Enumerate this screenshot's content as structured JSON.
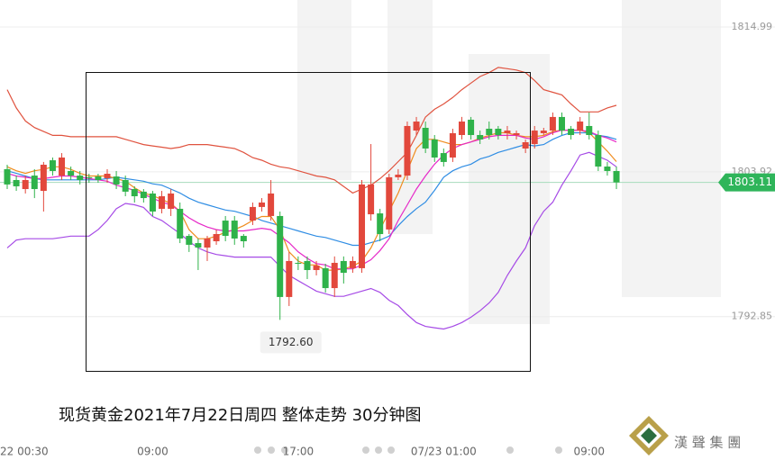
{
  "chart_data": {
    "type": "candlestick",
    "title": "现货黄金2021年7月22日周四 整体走势 30分钟图",
    "categories": [
      "22 00:30",
      null,
      null,
      null,
      null,
      null,
      null,
      null,
      null,
      null,
      null,
      null,
      null,
      null,
      null,
      null,
      "09:00",
      null,
      null,
      null,
      null,
      null,
      null,
      null,
      null,
      null,
      null,
      null,
      null,
      null,
      null,
      null,
      "17:00",
      null,
      null,
      null,
      null,
      null,
      null,
      null,
      null,
      null,
      null,
      null,
      null,
      null,
      null,
      null,
      "07/23 01:00",
      null,
      null,
      null,
      null,
      null,
      null,
      null,
      null,
      null,
      null,
      null,
      null,
      null,
      null,
      null,
      "09:00",
      null,
      null,
      null
    ],
    "open": [
      1804.12,
      1803.29,
      1802.6,
      1803.63,
      1802.46,
      1804.8,
      1803.63,
      1803.98,
      1803.63,
      1803.5,
      1803.56,
      1803.43,
      1803.56,
      1803.29,
      1802.6,
      1802.4,
      1802.26,
      1801.09,
      1801.09,
      1801.09,
      1799.02,
      1798.47,
      1798.13,
      1798.61,
      1800.19,
      1800.19,
      1799.02,
      1800.19,
      1801.23,
      1800.54,
      1800.54,
      1794.35,
      1796.96,
      1797.1,
      1796.41,
      1796.55,
      1795.03,
      1797.1,
      1796.55,
      1796.55,
      1800.67,
      1800.74,
      1799.51,
      1803.5,
      1803.63,
      1807.07,
      1807.28,
      1806.39,
      1805.35,
      1805.01,
      1806.73,
      1807.9,
      1806.73,
      1807.21,
      1807.21,
      1806.87,
      1806.73,
      1805.7,
      1806.04,
      1806.87,
      1807.07,
      1808.11,
      1807.21,
      1807.07,
      1807.42,
      1806.73,
      1804.32,
      1803.98
    ],
    "high": [
      1804.46,
      1803.63,
      1803.63,
      1804.12,
      1804.67,
      1805.01,
      1805.35,
      1804.32,
      1803.98,
      1803.77,
      1803.77,
      1804.12,
      1803.98,
      1803.63,
      1802.81,
      1802.6,
      1802.46,
      1802.46,
      1802.6,
      1801.57,
      1799.16,
      1798.82,
      1799.02,
      1799.51,
      1800.54,
      1800.54,
      1799.16,
      1801.57,
      1801.91,
      1803.29,
      1800.88,
      1797.79,
      1797.45,
      1797.45,
      1797.1,
      1796.89,
      1797.45,
      1797.45,
      1797.45,
      1803.29,
      1806.04,
      1801.09,
      1803.77,
      1804.12,
      1807.76,
      1808.11,
      1807.76,
      1806.73,
      1805.7,
      1807.21,
      1808.11,
      1808.11,
      1807.07,
      1807.76,
      1807.42,
      1807.42,
      1807.07,
      1806.39,
      1807.42,
      1807.28,
      1808.45,
      1808.45,
      1807.42,
      1808.11,
      1808.45,
      1807.07,
      1804.67,
      1804.32
    ],
    "low": [
      1802.6,
      1802.46,
      1802.26,
      1801.91,
      1800.88,
      1803.63,
      1803.29,
      1803.29,
      1802.95,
      1803.08,
      1803.08,
      1803.08,
      1802.6,
      1802.05,
      1801.57,
      1801.57,
      1800.54,
      1800.74,
      1800.54,
      1798.47,
      1797.79,
      1796.41,
      1797.1,
      1798.34,
      1798.61,
      1798.34,
      1798.13,
      1799.85,
      1800.88,
      1800.19,
      1792.6,
      1793.66,
      1796.41,
      1795.72,
      1796.0,
      1794.69,
      1794.35,
      1795.38,
      1796.2,
      1796.2,
      1800.19,
      1798.61,
      1799.16,
      1803.29,
      1803.29,
      1806.73,
      1805.35,
      1804.67,
      1804.32,
      1804.67,
      1806.39,
      1806.39,
      1806.04,
      1806.39,
      1806.39,
      1806.39,
      1806.39,
      1805.35,
      1805.7,
      1806.73,
      1806.73,
      1806.73,
      1806.39,
      1806.73,
      1806.39,
      1803.98,
      1803.63,
      1802.6
    ],
    "close": [
      1802.95,
      1802.81,
      1803.29,
      1802.6,
      1804.46,
      1803.98,
      1805.01,
      1803.63,
      1803.29,
      1803.43,
      1803.29,
      1803.77,
      1802.95,
      1802.4,
      1802.05,
      1801.91,
      1800.88,
      1802.05,
      1802.26,
      1798.82,
      1798.34,
      1798.13,
      1798.82,
      1799.16,
      1799.02,
      1798.82,
      1798.61,
      1801.23,
      1801.57,
      1802.26,
      1794.35,
      1797.1,
      1796.89,
      1796.41,
      1796.75,
      1795.03,
      1796.96,
      1796.2,
      1797.1,
      1802.95,
      1802.95,
      1799.16,
      1803.5,
      1803.7,
      1807.42,
      1807.76,
      1805.7,
      1805.01,
      1804.67,
      1806.87,
      1807.76,
      1806.73,
      1806.39,
      1806.73,
      1806.73,
      1807.07,
      1806.87,
      1806.18,
      1807.07,
      1807.07,
      1808.11,
      1807.07,
      1806.73,
      1807.76,
      1806.73,
      1804.32,
      1803.98,
      1803.11
    ],
    "up_color": "#e2483c",
    "down_color": "#2fb24a",
    "lines": [
      {
        "color": "#e0533f",
        "values": [
          1810.2,
          1808.8,
          1807.8,
          1807.3,
          1807.0,
          1806.7,
          1806.7,
          1806.6,
          1806.6,
          1806.6,
          1806.6,
          1806.6,
          1806.6,
          1806.4,
          1806.2,
          1806.0,
          1805.9,
          1805.8,
          1805.7,
          1805.8,
          1806.0,
          1806.0,
          1806.0,
          1805.9,
          1805.8,
          1805.7,
          1805.4,
          1805.0,
          1804.8,
          1804.5,
          1804.3,
          1804.2,
          1804.0,
          1803.8,
          1803.6,
          1803.5,
          1803.3,
          1802.8,
          1802.3,
          1802.6,
          1802.9,
          1803.4,
          1804.0,
          1804.7,
          1805.4,
          1806.7,
          1808.1,
          1808.7,
          1809.1,
          1809.6,
          1810.2,
          1810.7,
          1811.2,
          1811.5,
          1811.9,
          1811.8,
          1811.7,
          1811.5,
          1810.9,
          1810.2,
          1810.0,
          1809.8,
          1809.1,
          1808.5,
          1808.5,
          1808.5,
          1808.8,
          1809.0
        ]
      },
      {
        "color": "#2f8de4",
        "values": [
          1804.0,
          1803.8,
          1803.6,
          1803.4,
          1803.3,
          1803.3,
          1803.3,
          1803.3,
          1803.3,
          1803.3,
          1803.3,
          1803.4,
          1803.5,
          1803.4,
          1803.3,
          1803.2,
          1803.0,
          1802.9,
          1802.6,
          1802.3,
          1801.9,
          1801.6,
          1801.4,
          1801.2,
          1801.0,
          1800.9,
          1800.7,
          1800.5,
          1800.2,
          1800.0,
          1799.8,
          1799.6,
          1799.4,
          1799.2,
          1799.0,
          1798.9,
          1798.7,
          1798.5,
          1798.3,
          1798.3,
          1798.5,
          1798.7,
          1799.0,
          1799.8,
          1800.5,
          1801.1,
          1801.6,
          1802.5,
          1803.5,
          1804.0,
          1804.3,
          1804.5,
          1804.9,
          1805.1,
          1805.4,
          1805.6,
          1805.8,
          1806.0,
          1805.9,
          1806.0,
          1806.4,
          1806.7,
          1806.9,
          1806.9,
          1806.9,
          1806.7,
          1806.6,
          1806.4
        ]
      },
      {
        "color": "#a64be6",
        "values": [
          1798.1,
          1798.7,
          1798.8,
          1798.8,
          1798.8,
          1798.8,
          1798.9,
          1799.0,
          1799.0,
          1799.0,
          1799.5,
          1800.2,
          1801.1,
          1801.5,
          1801.4,
          1801.2,
          1800.5,
          1800.2,
          1799.7,
          1799.2,
          1798.6,
          1798.1,
          1797.8,
          1797.6,
          1797.5,
          1797.4,
          1797.4,
          1797.4,
          1797.4,
          1797.4,
          1796.7,
          1796.0,
          1795.6,
          1795.2,
          1794.8,
          1794.6,
          1794.4,
          1794.4,
          1794.6,
          1794.8,
          1795.0,
          1794.7,
          1794.1,
          1793.7,
          1793.0,
          1792.4,
          1792.1,
          1792.0,
          1791.9,
          1792.1,
          1792.4,
          1792.8,
          1793.3,
          1793.9,
          1794.7,
          1796.0,
          1797.1,
          1798.1,
          1799.8,
          1800.9,
          1801.6,
          1802.9,
          1804.0,
          1805.2,
          1805.4,
          1805.1,
          1804.8,
          1804.3
        ]
      },
      {
        "color": "#f08c1e",
        "values": [
          1804.3,
          1804.0,
          1803.8,
          1804.0,
          1804.1,
          1804.3,
          1804.3,
          1804.1,
          1803.8,
          1803.6,
          1803.6,
          1803.6,
          1803.4,
          1803.2,
          1802.7,
          1802.3,
          1802.1,
          1801.8,
          1801.5,
          1800.9,
          1799.5,
          1798.8,
          1798.8,
          1799.0,
          1799.3,
          1799.5,
          1799.8,
          1800.2,
          1800.5,
          1800.5,
          1799.5,
          1797.8,
          1797.1,
          1796.8,
          1796.8,
          1796.4,
          1796.4,
          1796.5,
          1796.7,
          1797.1,
          1798.1,
          1799.5,
          1800.9,
          1802.3,
          1804.0,
          1805.7,
          1806.4,
          1806.4,
          1806.2,
          1806.0,
          1806.0,
          1806.2,
          1806.5,
          1806.7,
          1806.9,
          1806.9,
          1806.7,
          1806.6,
          1806.6,
          1806.7,
          1807.0,
          1807.1,
          1807.1,
          1807.1,
          1806.9,
          1806.2,
          1805.5,
          1804.7
        ]
      },
      {
        "color": "#e629c8",
        "values": [
          1803.8,
          1803.6,
          1803.5,
          1803.4,
          1803.4,
          1803.5,
          1803.6,
          1803.6,
          1803.5,
          1803.4,
          1803.3,
          1803.2,
          1802.9,
          1802.7,
          1802.5,
          1802.2,
          1801.9,
          1801.6,
          1801.4,
          1800.9,
          1800.4,
          1800.0,
          1799.7,
          1799.5,
          1799.4,
          1799.4,
          1799.4,
          1799.5,
          1799.6,
          1799.5,
          1799.0,
          1798.5,
          1797.8,
          1797.3,
          1796.9,
          1796.8,
          1796.5,
          1796.5,
          1796.5,
          1796.8,
          1797.2,
          1797.9,
          1798.8,
          1800.2,
          1801.4,
          1802.6,
          1803.6,
          1804.5,
          1805.2,
          1805.7,
          1806.0,
          1806.2,
          1806.4,
          1806.6,
          1806.7,
          1806.7,
          1806.7,
          1806.5,
          1806.4,
          1806.6,
          1806.9,
          1807.1,
          1807.1,
          1807.1,
          1807.0,
          1806.7,
          1806.5,
          1806.2
        ]
      }
    ],
    "low_marker": {
      "value": 1792.6,
      "label": "1792.60"
    },
    "last_price_color": "#2fb55a",
    "ylim": [
      1783.68,
      1817.05
    ],
    "yticks": [
      1814.99,
      1803.92,
      1792.85
    ],
    "grid": true
  },
  "logo": "漢 聲 集 團"
}
